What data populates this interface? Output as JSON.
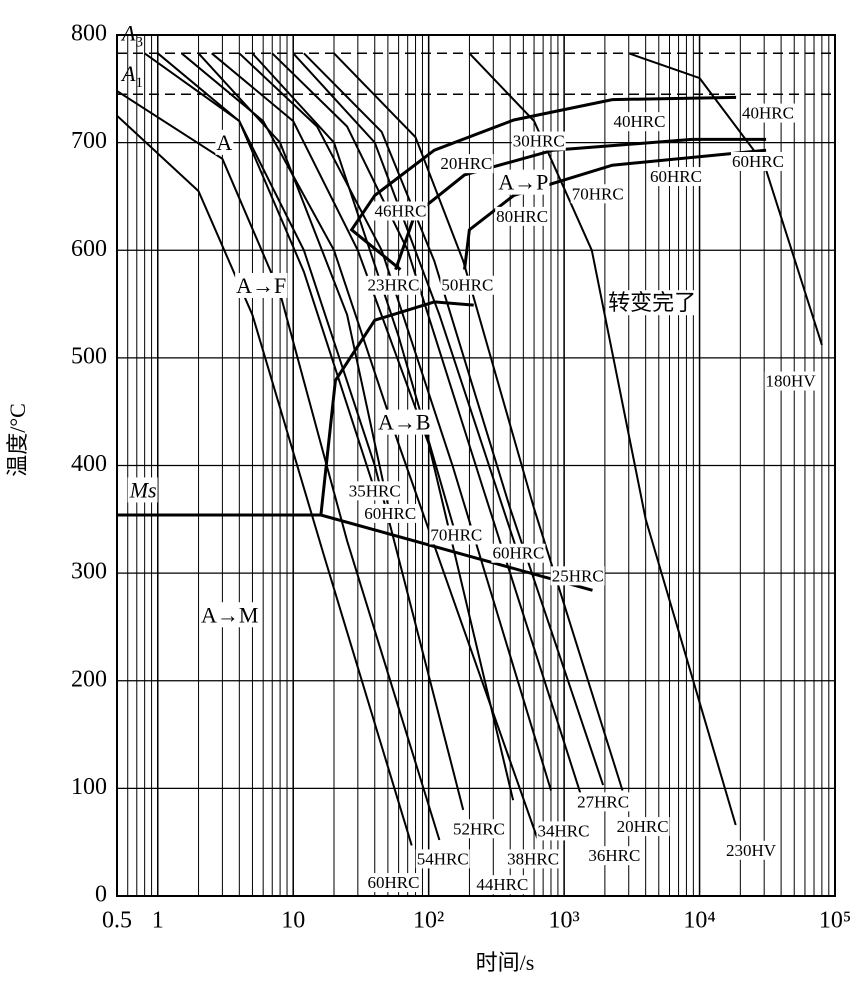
{
  "chart_data": {
    "type": "line",
    "xlabel": "时间/s",
    "ylabel": "温度/°C",
    "xscale": "log",
    "xlim": [
      0.5,
      100000
    ],
    "ylim": [
      0,
      800
    ],
    "xticks": [
      {
        "value": 0.5,
        "label": "0.5"
      },
      1,
      10,
      {
        "value": 100,
        "label": "10²"
      },
      {
        "value": 1000,
        "label": "10³"
      },
      {
        "value": 10000,
        "label": "10⁴"
      },
      {
        "value": 100000,
        "label": "10⁵"
      }
    ],
    "yticks": [
      0,
      100,
      200,
      300,
      400,
      500,
      600,
      700,
      800
    ],
    "grid": true,
    "color": "#000000",
    "reference_lines": [
      {
        "symbol": "A",
        "subscript": "3",
        "value": 783
      },
      {
        "symbol": "A",
        "subscript": "1",
        "value": 745
      }
    ],
    "series": [
      {
        "x": [
          0.5,
          2,
          5,
          17,
          75
        ],
        "values": [
          725,
          655,
          540,
          315,
          47
        ]
      },
      {
        "x": [
          0.5,
          3,
          8,
          25,
          120
        ],
        "values": [
          748,
          685,
          560,
          330,
          52
        ]
      },
      {
        "x": [
          0.8,
          4,
          12,
          40,
          180
        ],
        "values": [
          783,
          720,
          600,
          400,
          80
        ]
      },
      {
        "x": [
          1.5,
          6,
          20,
          60,
          640
        ],
        "values": [
          783,
          720,
          600,
          420,
          52
        ]
      },
      {
        "x": [
          2.5,
          10,
          30,
          100,
          420
        ],
        "values": [
          783,
          720,
          600,
          420,
          89
        ]
      },
      {
        "x": [
          4,
          15,
          45,
          150,
          800
        ],
        "values": [
          783,
          715,
          600,
          400,
          98
        ]
      },
      {
        "x": [
          7,
          25,
          70,
          250,
          1370
        ],
        "values": [
          783,
          715,
          600,
          380,
          89
        ]
      },
      {
        "x": [
          12,
          45,
          110,
          400,
          1940
        ],
        "values": [
          783,
          710,
          590,
          360,
          103
        ]
      },
      {
        "x": [
          20,
          80,
          180,
          600,
          2700
        ],
        "values": [
          783,
          705,
          590,
          360,
          98
        ]
      },
      {
        "x": [
          200,
          600,
          1600,
          4000,
          18500
        ],
        "values": [
          783,
          720,
          600,
          350,
          66
        ]
      },
      {
        "x": [
          3000,
          10000,
          30000,
          80000
        ],
        "values": [
          783,
          760,
          680,
          512
        ]
      },
      {
        "x": [
          1,
          4,
          12,
          40
        ],
        "values": [
          783,
          720,
          580,
          377
        ]
      },
      {
        "x": [
          2,
          8,
          25,
          52
        ],
        "values": [
          783,
          700,
          540,
          354
        ]
      },
      {
        "x": [
          5,
          20,
          60,
          160
        ],
        "values": [
          783,
          700,
          520,
          334
        ]
      },
      {
        "x": [
          10,
          40,
          120,
          460
        ],
        "values": [
          783,
          700,
          540,
          317
        ]
      }
    ],
    "boundaries": [
      {
        "x": [
          62,
          27,
          40,
          110,
          425,
          2270,
          18600
        ],
        "values": [
          582,
          619,
          651,
          693,
          721,
          740,
          742
        ]
      },
      {
        "x": [
          57,
          79,
          184,
          830,
          8800,
          31000
        ],
        "values": [
          582,
          633,
          670,
          693,
          703,
          703
        ]
      },
      {
        "x": [
          184,
          200,
          425,
          2270,
          31000
        ],
        "values": [
          582,
          619,
          651,
          679,
          693
        ]
      },
      {
        "x": [
          16,
          20.5,
          40,
          110,
          215
        ],
        "values": [
          354,
          479,
          535,
          552,
          549
        ]
      },
      {
        "x": [
          0.5,
          16,
          1620
        ],
        "values": [
          354,
          354,
          284
        ]
      }
    ],
    "annotations": [
      {
        "text": "A",
        "x": 3.1,
        "y": 698
      },
      {
        "text": "A→F",
        "x": 5.8,
        "y": 565
      },
      {
        "text": "A→P",
        "x": 500,
        "y": 661
      },
      {
        "text": "A→B",
        "x": 66,
        "y": 438
      },
      {
        "text": "A→M",
        "x": 3.4,
        "y": 259
      },
      {
        "text": "转变完了",
        "x": 4470,
        "y": 549
      },
      {
        "text": "Ms",
        "x": 0.78,
        "y": 375
      },
      {
        "text": "180HV",
        "x": 47000,
        "y": 477
      },
      {
        "text": "23HRC",
        "x": 55,
        "y": 566
      },
      {
        "text": "50HRC",
        "x": 193,
        "y": 566
      },
      {
        "text": "46HRC",
        "x": 62,
        "y": 635
      },
      {
        "text": "20HRC",
        "x": 190,
        "y": 679
      },
      {
        "text": "30HRC",
        "x": 650,
        "y": 700
      },
      {
        "text": "40HRC",
        "x": 3600,
        "y": 718
      },
      {
        "text": "80HRC",
        "x": 490,
        "y": 630
      },
      {
        "text": "70HRC",
        "x": 1770,
        "y": 651
      },
      {
        "text": "60HRC",
        "x": 6700,
        "y": 667
      },
      {
        "text": "60HRC",
        "x": 27000,
        "y": 681
      },
      {
        "text": "40HRC",
        "x": 32000,
        "y": 726
      },
      {
        "text": "35HRC",
        "x": 40,
        "y": 375
      },
      {
        "text": "60HRC",
        "x": 52,
        "y": 354
      },
      {
        "text": "70HRC",
        "x": 160,
        "y": 334
      },
      {
        "text": "60HRC",
        "x": 460,
        "y": 317
      },
      {
        "text": "25HRC",
        "x": 1260,
        "y": 296
      },
      {
        "text": "27HRC",
        "x": 1940,
        "y": 86
      },
      {
        "text": "52HRC",
        "x": 235,
        "y": 61
      },
      {
        "text": "34HRC",
        "x": 990,
        "y": 59
      },
      {
        "text": "20HRC",
        "x": 3800,
        "y": 63
      },
      {
        "text": "54HRC",
        "x": 127,
        "y": 33
      },
      {
        "text": "38HRC",
        "x": 590,
        "y": 33
      },
      {
        "text": "36HRC",
        "x": 2350,
        "y": 36
      },
      {
        "text": "230HV",
        "x": 24000,
        "y": 41
      },
      {
        "text": "60HRC",
        "x": 55,
        "y": 11
      },
      {
        "text": "44HRC",
        "x": 350,
        "y": 9
      }
    ]
  }
}
